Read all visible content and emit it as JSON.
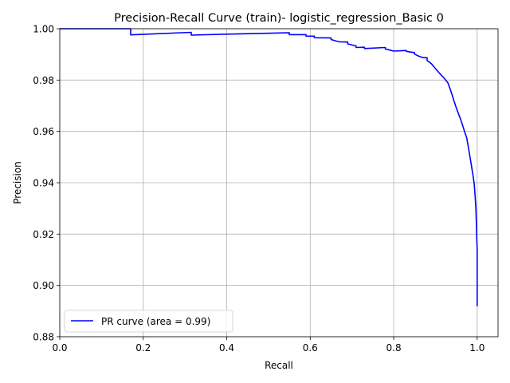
{
  "chart_data": {
    "type": "line",
    "title": "Precision-Recall Curve (train)- logistic_regression_Basic 0",
    "xlabel": "Recall",
    "ylabel": "Precision",
    "xlim": [
      0.0,
      1.05
    ],
    "ylim": [
      0.88,
      1.0
    ],
    "xticks": [
      0.0,
      0.2,
      0.4,
      0.6,
      0.8,
      1.0
    ],
    "xtick_labels": [
      "0.0",
      "0.2",
      "0.4",
      "0.6",
      "0.8",
      "1.0"
    ],
    "yticks": [
      0.88,
      0.9,
      0.92,
      0.94,
      0.96,
      0.98,
      1.0
    ],
    "ytick_labels": [
      "0.88",
      "0.90",
      "0.92",
      "0.94",
      "0.96",
      "0.98",
      "1.00"
    ],
    "grid": true,
    "legend_position": "lower-left",
    "series": [
      {
        "name": "PR curve (area = 0.99)",
        "color": "#0000ff",
        "points": [
          [
            0.0,
            1.0
          ],
          [
            0.17,
            1.0
          ],
          [
            0.17,
            0.9976
          ],
          [
            0.315,
            0.9986
          ],
          [
            0.315,
            0.9975
          ],
          [
            0.4,
            0.9979
          ],
          [
            0.55,
            0.9984
          ],
          [
            0.55,
            0.9977
          ],
          [
            0.59,
            0.9977
          ],
          [
            0.59,
            0.9971
          ],
          [
            0.61,
            0.9971
          ],
          [
            0.61,
            0.9965
          ],
          [
            0.65,
            0.9964
          ],
          [
            0.65,
            0.9958
          ],
          [
            0.66,
            0.9953
          ],
          [
            0.67,
            0.9949
          ],
          [
            0.69,
            0.9948
          ],
          [
            0.69,
            0.9941
          ],
          [
            0.71,
            0.9933
          ],
          [
            0.71,
            0.9927
          ],
          [
            0.73,
            0.9928
          ],
          [
            0.73,
            0.9923
          ],
          [
            0.78,
            0.9927
          ],
          [
            0.78,
            0.9921
          ],
          [
            0.79,
            0.9917
          ],
          [
            0.8,
            0.9913
          ],
          [
            0.83,
            0.9915
          ],
          [
            0.83,
            0.9912
          ],
          [
            0.85,
            0.9907
          ],
          [
            0.85,
            0.9901
          ],
          [
            0.86,
            0.9893
          ],
          [
            0.87,
            0.9887
          ],
          [
            0.88,
            0.9887
          ],
          [
            0.88,
            0.9876
          ],
          [
            0.89,
            0.9864
          ],
          [
            0.9,
            0.9845
          ],
          [
            0.91,
            0.9826
          ],
          [
            0.92,
            0.9809
          ],
          [
            0.93,
            0.9789
          ],
          [
            0.935,
            0.9766
          ],
          [
            0.94,
            0.9742
          ],
          [
            0.945,
            0.9716
          ],
          [
            0.95,
            0.9692
          ],
          [
            0.955,
            0.967
          ],
          [
            0.96,
            0.9648
          ],
          [
            0.965,
            0.9624
          ],
          [
            0.97,
            0.9598
          ],
          [
            0.975,
            0.9575
          ],
          [
            0.98,
            0.9528
          ],
          [
            0.985,
            0.9478
          ],
          [
            0.99,
            0.9428
          ],
          [
            0.993,
            0.9395
          ],
          [
            0.995,
            0.935
          ],
          [
            0.997,
            0.93
          ],
          [
            0.998,
            0.924
          ],
          [
            0.999,
            0.918
          ],
          [
            1.0,
            0.9145
          ],
          [
            1.0,
            0.8918
          ]
        ]
      }
    ]
  }
}
